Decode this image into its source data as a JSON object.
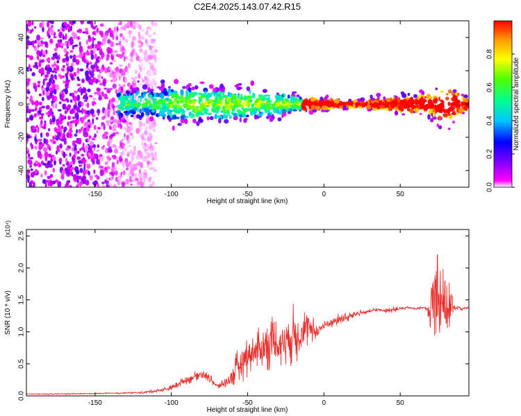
{
  "figure_title": "C2E4.2025.143.07.42.R15",
  "colors": {
    "snr_line": "#e8322f",
    "axis": "#000000",
    "spectrum_low": "#6a1fd6",
    "spectrum_high": "#ff2a00"
  },
  "chart_data": [
    {
      "type": "heatmap",
      "xlabel": "Height of straight line (km)",
      "ylabel": "Frequency (Hz)",
      "xlim": [
        -195,
        95
      ],
      "ylim": [
        -50,
        50
      ],
      "x_ticks": [
        -150,
        -100,
        -50,
        0,
        50
      ],
      "y_ticks": [
        -40,
        -20,
        0,
        20,
        40
      ],
      "grid": false,
      "colorbar": {
        "label": "Normalized spectral amplitude",
        "range": [
          0.0,
          1.0
        ],
        "ticks": [
          "0.0",
          "0.2",
          "0.4",
          "0.6",
          "0.8"
        ],
        "colormap": [
          "#ffffff",
          "#ff00ff",
          "#8000ff",
          "#0000ff",
          "#00c8ff",
          "#00ff90",
          "#50ff00",
          "#ffff00",
          "#ffa000",
          "#ff0000"
        ]
      },
      "description_values": {
        "noise_region_x": [
          -195,
          -120
        ],
        "signal_band_center_hz": 0,
        "signal_spread_hz_at_x": [
          [
            -130,
            8
          ],
          [
            -90,
            10
          ],
          [
            -40,
            8
          ],
          [
            -15,
            4
          ],
          [
            20,
            2
          ],
          [
            70,
            6
          ],
          [
            80,
            12
          ],
          [
            95,
            3
          ]
        ],
        "peak_amplitude_x_range": [
          -15,
          95
        ]
      }
    },
    {
      "type": "line",
      "xlabel": "Height of straight line (km)",
      "ylabel": "SNR (10 * v/v)",
      "y_multiplier": "(x10⁴)",
      "xlim": [
        -195,
        95
      ],
      "ylim": [
        0,
        2.6
      ],
      "x_ticks": [
        -150,
        -100,
        -50,
        0,
        50
      ],
      "y_ticks": [
        "0.0",
        "0.5",
        "1.0",
        "1.5",
        "2.0",
        "2.5"
      ],
      "grid": false,
      "series": [
        {
          "x": [
            -195,
            -170,
            -140,
            -120,
            -110,
            -100,
            -95,
            -90,
            -85,
            -80,
            -75,
            -70,
            -65,
            -60,
            -55,
            -50,
            -45,
            -40,
            -35,
            -30,
            -25,
            -20,
            -15,
            -10,
            -5,
            0,
            5,
            10,
            15,
            20,
            25,
            30,
            35,
            40,
            45,
            50,
            55,
            60,
            65,
            68,
            70,
            72,
            75,
            78,
            80,
            83,
            85,
            88,
            90,
            95
          ],
          "values": [
            0.03,
            0.03,
            0.04,
            0.05,
            0.08,
            0.12,
            0.2,
            0.25,
            0.3,
            0.35,
            0.28,
            0.15,
            0.2,
            0.3,
            0.5,
            0.65,
            0.7,
            0.75,
            0.85,
            0.8,
            0.9,
            0.95,
            1.0,
            1.05,
            1.0,
            1.1,
            1.15,
            1.2,
            1.22,
            1.28,
            1.3,
            1.32,
            1.35,
            1.33,
            1.35,
            1.36,
            1.38,
            1.36,
            1.38,
            1.35,
            1.3,
            1.5,
            1.7,
            1.6,
            1.4,
            1.3,
            1.38,
            1.38,
            1.36,
            1.38
          ],
          "noise_amplitude": [
            0.01,
            0.01,
            0.01,
            0.02,
            0.03,
            0.05,
            0.07,
            0.07,
            0.08,
            0.08,
            0.07,
            0.05,
            0.1,
            0.2,
            0.35,
            0.35,
            0.35,
            0.4,
            0.45,
            0.45,
            0.45,
            0.5,
            0.45,
            0.3,
            0.15,
            0.12,
            0.1,
            0.1,
            0.08,
            0.05,
            0.05,
            0.04,
            0.03,
            0.03,
            0.05,
            0.03,
            0.02,
            0.02,
            0.02,
            0.05,
            0.6,
            0.8,
            1.0,
            0.9,
            0.8,
            0.6,
            0.04,
            0.03,
            0.03,
            0.03
          ]
        }
      ]
    }
  ]
}
